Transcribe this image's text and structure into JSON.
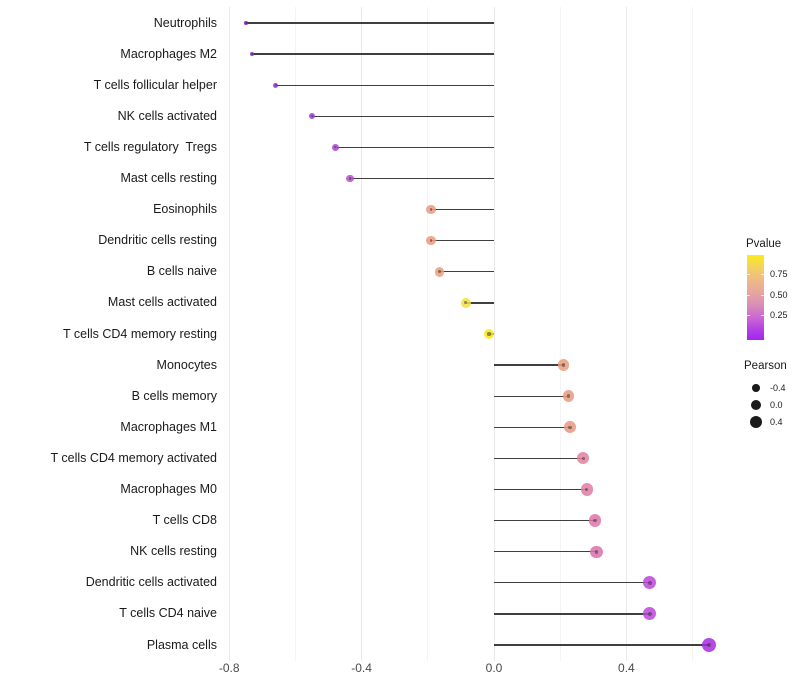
{
  "chart_data": {
    "type": "scatter",
    "variant": "lollipop",
    "orientation": "horizontal",
    "title": "",
    "xlabel": "",
    "ylabel": "",
    "xlim": [
      -0.82,
      0.72
    ],
    "grid": "vertical-only",
    "x_ticks": {
      "labels": [
        "-0.8",
        "-0.4",
        "0.0",
        "0.4"
      ],
      "values": [
        -0.8,
        -0.4,
        0.0,
        0.4
      ],
      "minor_values": [
        -0.6,
        -0.2,
        0.2,
        0.6
      ]
    },
    "baseline": 0,
    "categories": [
      "Neutrophils",
      "Macrophages M2",
      "T cells follicular helper",
      "NK cells activated",
      "T cells regulatory  Tregs",
      "Mast cells resting",
      "Eosinophils",
      "Dendritic cells resting",
      "B cells naive",
      "Mast cells activated",
      "T cells CD4 memory resting",
      "Monocytes",
      "B cells memory",
      "Macrophages M1",
      "T cells CD4 memory activated",
      "Macrophages M0",
      "T cells CD8",
      "NK cells resting",
      "Dendritic cells activated",
      "T cells CD4 naive",
      "Plasma cells"
    ],
    "series": [
      {
        "name": "Pearson",
        "values": [
          -0.75,
          -0.73,
          -0.66,
          -0.55,
          -0.48,
          -0.435,
          -0.19,
          -0.19,
          -0.165,
          -0.085,
          -0.015,
          0.21,
          0.225,
          0.23,
          0.27,
          0.28,
          0.305,
          0.31,
          0.47,
          0.47,
          0.65
        ]
      }
    ],
    "point_colors": [
      "#7e22c3",
      "#8828cd",
      "#9230d8",
      "#9f3cd4",
      "#a846cf",
      "#b152c9",
      "#e99c7b",
      "#e99c7b",
      "#ea9f7a",
      "#f2df3d",
      "#f8e81c",
      "#ea9e7b",
      "#e99a7e",
      "#e89880",
      "#e2809e",
      "#e07ca2",
      "#dd74aa",
      "#db70ae",
      "#bc45da",
      "#bc45da",
      "#a82ae4"
    ]
  },
  "legends": {
    "pvalue": {
      "title": "Pvalue",
      "tick_labels": [
        "0.75",
        "0.50",
        "0.25"
      ],
      "gradient_top_color": "#f9ec1b",
      "gradient_mid_color": "#e6a69e",
      "gradient_bottom_color": "#a226ee"
    },
    "pearson": {
      "title": "Pearson",
      "labels": [
        "-0.4",
        "0.0",
        "0.4"
      ],
      "values": [
        -0.4,
        0.0,
        0.4
      ],
      "dot_color": "#1a1a1a"
    }
  },
  "colors": {
    "background": "#ffffff",
    "stem": "#3f3f3f",
    "grid_major": "#e9e9e9",
    "grid_minor": "#f4f4f4",
    "axis_text": "#4a4a4a",
    "label_text": "#1a1a1a"
  }
}
